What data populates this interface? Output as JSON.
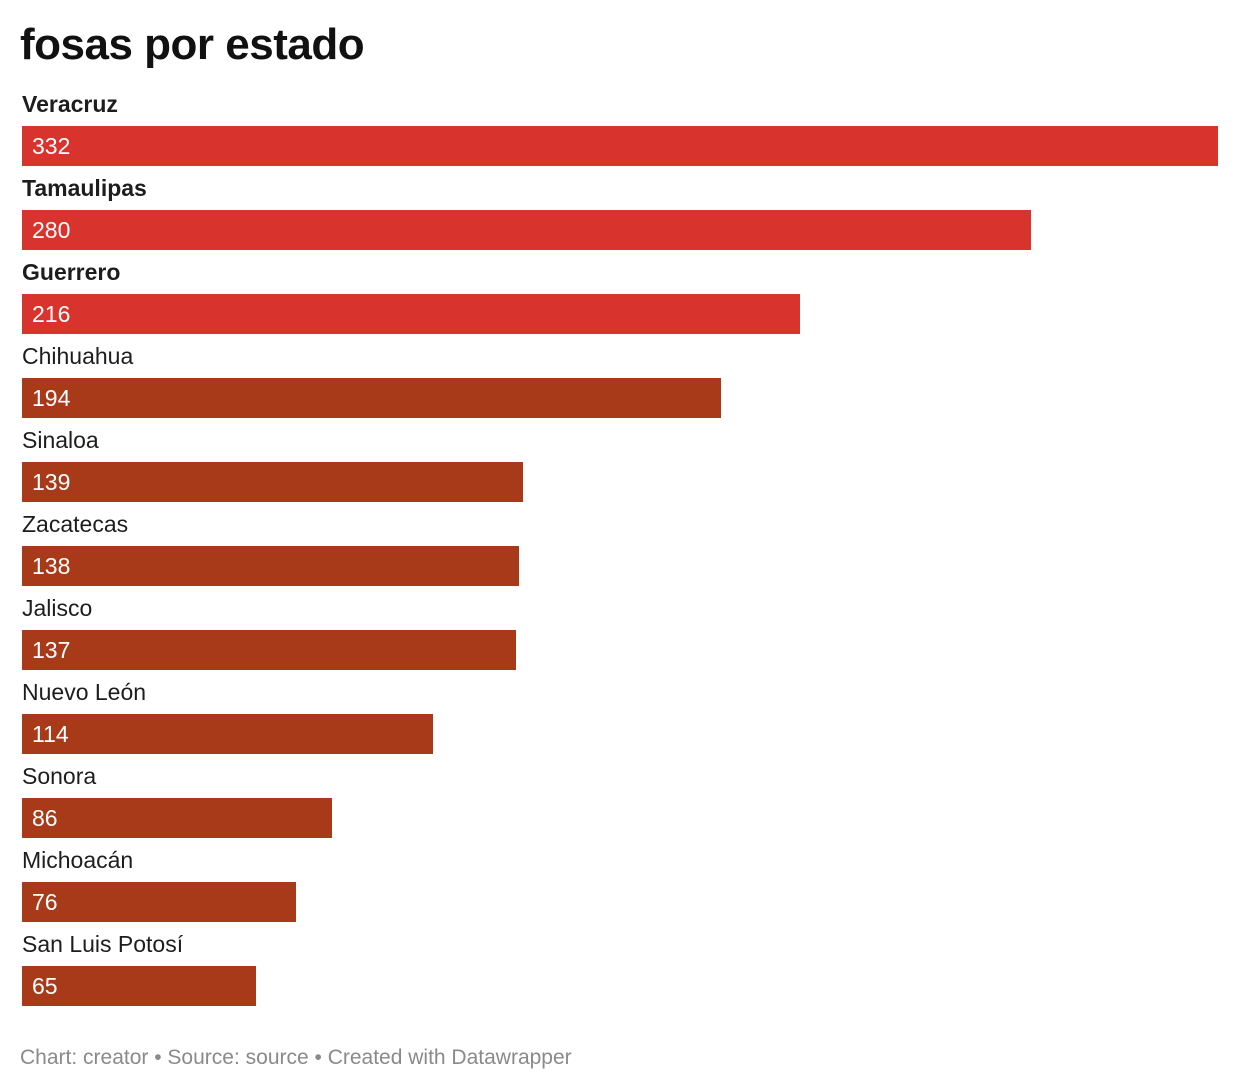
{
  "title": "fosas por estado",
  "footer": {
    "chart_prefix": "Chart: ",
    "chart_creator": "creator",
    "separator": " • ",
    "source_prefix": "Source: ",
    "source": "source",
    "created_with": "Created with Datawrapper"
  },
  "colors": {
    "highlight": "#d8332d",
    "default": "#a83a1a"
  },
  "chart_data": {
    "type": "bar",
    "orientation": "horizontal",
    "title": "fosas por estado",
    "xlabel": "",
    "ylabel": "",
    "xlim": [
      0,
      332
    ],
    "grid": false,
    "value_labels": "inside-left",
    "categories": [
      "Veracruz",
      "Tamaulipas",
      "Guerrero",
      "Chihuahua",
      "Sinaloa",
      "Zacatecas",
      "Jalisco",
      "Nuevo León",
      "Sonora",
      "Michoacán",
      "San Luis Potosí"
    ],
    "values": [
      332,
      280,
      216,
      194,
      139,
      138,
      137,
      114,
      86,
      76,
      65
    ],
    "highlighted": [
      true,
      true,
      true,
      false,
      false,
      false,
      false,
      false,
      false,
      false,
      false
    ]
  }
}
